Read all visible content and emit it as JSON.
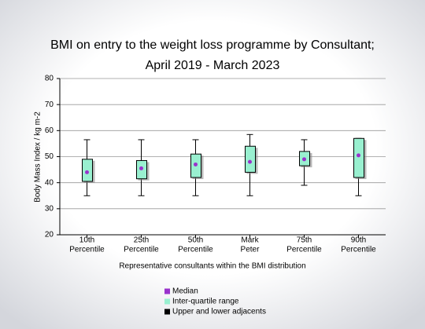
{
  "chart_data": {
    "type": "box",
    "title": [
      "BMI on entry to the weight loss programme by Consultant;",
      "April 2019 - March 2023"
    ],
    "x_label": "Representative consultants within the BMI distribution",
    "y_label": "Body Mass Index / kg m-2",
    "categories": [
      [
        "10th",
        "Percentile"
      ],
      [
        "25th",
        "Percentile"
      ],
      [
        "50th",
        "Percentile"
      ],
      [
        "Mark",
        "Peter"
      ],
      [
        "75th",
        "Percentile"
      ],
      [
        "90th",
        "Percentile"
      ]
    ],
    "boxes": [
      {
        "min": 35,
        "q1": 40.5,
        "median": 44,
        "q3": 49,
        "max": 56.5
      },
      {
        "min": 35,
        "q1": 41.5,
        "median": 45.5,
        "q3": 48.5,
        "max": 56.5
      },
      {
        "min": 35,
        "q1": 42,
        "median": 47,
        "q3": 51,
        "max": 56.5
      },
      {
        "min": 35,
        "q1": 44,
        "median": 48,
        "q3": 54,
        "max": 58.5
      },
      {
        "min": 39,
        "q1": 46.5,
        "median": 49,
        "q3": 52,
        "max": 56.5
      },
      {
        "min": 35,
        "q1": 42,
        "median": 50.5,
        "q3": 57,
        "max": 57
      }
    ],
    "ylim": [
      20,
      80
    ],
    "yticks": [
      20,
      30,
      40,
      50,
      60,
      70,
      80
    ],
    "grid": true,
    "legend": [
      {
        "name": "Median",
        "color": "#9933cc"
      },
      {
        "name": "Inter-quartile range",
        "color": "#99f0d0"
      },
      {
        "name": "Upper and lower adjacents",
        "color": "#000000"
      }
    ]
  }
}
